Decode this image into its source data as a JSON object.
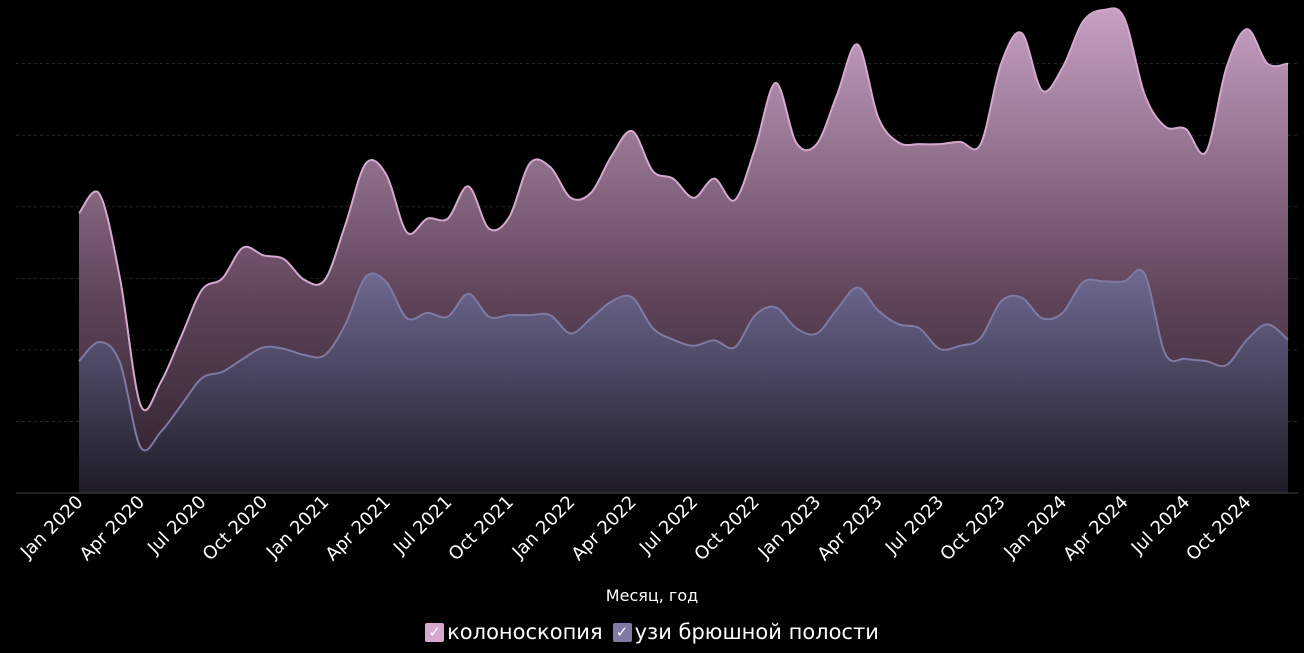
{
  "chart_data": {
    "type": "area",
    "xlabel": "Месяц, год",
    "ylabel": "",
    "grid": true,
    "legend_position": "bottom",
    "x_tick_labels": [
      "Jan 2020",
      "Apr 2020",
      "Jul 2020",
      "Oct 2020",
      "Jan 2021",
      "Apr 2021",
      "Jul 2021",
      "Oct 2021",
      "Jan 2022",
      "Apr 2022",
      "Jul 2022",
      "Oct 2022",
      "Jan 2023",
      "Apr 2023",
      "Jul 2023",
      "Oct 2023",
      "Jan 2024",
      "Apr 2024",
      "Jul 2024",
      "Oct 2024"
    ],
    "x": [
      "Jan 2020",
      "Feb 2020",
      "Mar 2020",
      "Apr 2020",
      "May 2020",
      "Jun 2020",
      "Jul 2020",
      "Aug 2020",
      "Sep 2020",
      "Oct 2020",
      "Nov 2020",
      "Dec 2020",
      "Jan 2021",
      "Feb 2021",
      "Mar 2021",
      "Apr 2021",
      "May 2021",
      "Jun 2021",
      "Jul 2021",
      "Aug 2021",
      "Sep 2021",
      "Oct 2021",
      "Nov 2021",
      "Dec 2021",
      "Jan 2022",
      "Feb 2022",
      "Mar 2022",
      "Apr 2022",
      "May 2022",
      "Jun 2022",
      "Jul 2022",
      "Aug 2022",
      "Sep 2022",
      "Oct 2022",
      "Nov 2022",
      "Dec 2022",
      "Jan 2023",
      "Feb 2023",
      "Mar 2023",
      "Apr 2023",
      "May 2023",
      "Jun 2023",
      "Jul 2023",
      "Aug 2023",
      "Sep 2023",
      "Oct 2023",
      "Nov 2023",
      "Dec 2023",
      "Jan 2024",
      "Feb 2024",
      "Mar 2024",
      "Apr 2024",
      "May 2024",
      "Jun 2024",
      "Jul 2024",
      "Aug 2024",
      "Sep 2024",
      "Oct 2024",
      "Nov 2024",
      "Dec 2024"
    ],
    "ylim": [
      0,
      6.3
    ],
    "series": [
      {
        "name": "колоноскопия",
        "color": "#d4a8cf",
        "values": [
          3.65,
          3.9,
          2.8,
          1.15,
          1.45,
          2.05,
          2.65,
          2.8,
          3.2,
          3.1,
          3.05,
          2.78,
          2.78,
          3.5,
          4.3,
          4.15,
          3.4,
          3.58,
          3.58,
          4.0,
          3.45,
          3.6,
          4.3,
          4.25,
          3.85,
          3.92,
          4.4,
          4.72,
          4.2,
          4.1,
          3.85,
          4.1,
          3.82,
          4.5,
          5.35,
          4.57,
          4.55,
          5.2,
          5.85,
          4.9,
          4.57,
          4.55,
          4.55,
          4.58,
          4.55,
          5.6,
          6.0,
          5.25,
          5.55,
          6.15,
          6.3,
          6.2,
          5.2,
          4.78,
          4.75,
          4.45,
          5.55,
          6.05,
          5.6,
          5.6
        ]
      },
      {
        "name": "узи брюшной полости",
        "color": "#7e7aa3",
        "values": [
          1.72,
          1.97,
          1.7,
          0.6,
          0.8,
          1.15,
          1.5,
          1.58,
          1.75,
          1.9,
          1.88,
          1.8,
          1.8,
          2.2,
          2.82,
          2.75,
          2.28,
          2.35,
          2.3,
          2.6,
          2.3,
          2.32,
          2.32,
          2.32,
          2.08,
          2.28,
          2.5,
          2.55,
          2.15,
          2.0,
          1.92,
          1.99,
          1.9,
          2.32,
          2.42,
          2.15,
          2.08,
          2.4,
          2.68,
          2.38,
          2.2,
          2.15,
          1.88,
          1.92,
          2.02,
          2.5,
          2.55,
          2.28,
          2.35,
          2.75,
          2.76,
          2.76,
          2.86,
          1.82,
          1.75,
          1.72,
          1.67,
          2.0,
          2.2,
          2.0
        ]
      }
    ]
  },
  "legend": {
    "items": [
      {
        "label": "колоноскопия",
        "check": "✓",
        "color": "#d4a8cf"
      },
      {
        "label": "узи брюшной полости",
        "check": "✓",
        "color": "#7e7aa3"
      }
    ]
  }
}
